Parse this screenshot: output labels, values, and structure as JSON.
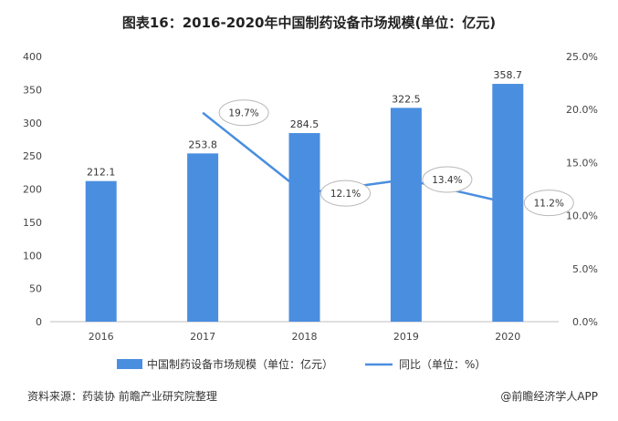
{
  "title": "图表16：2016-2020年中国制药设备市场规模(单位：亿元)",
  "chart_data": {
    "type": "bar",
    "categories": [
      "2016",
      "2017",
      "2018",
      "2019",
      "2020"
    ],
    "series": [
      {
        "name": "中国制药设备市场规模（单位：亿元）",
        "type": "bar",
        "axis": "left",
        "values": [
          212.1,
          253.8,
          284.5,
          322.5,
          358.7
        ],
        "labels": [
          "212.1",
          "253.8",
          "284.5",
          "322.5",
          "358.7"
        ],
        "color": "#4a8ee0"
      },
      {
        "name": "同比（单位：%）",
        "type": "line",
        "axis": "right",
        "values": [
          null,
          19.7,
          12.1,
          13.4,
          11.2
        ],
        "labels": [
          "",
          "19.7%",
          "12.1%",
          "13.4%",
          "11.2%"
        ],
        "color": "#4a8ee0"
      }
    ],
    "y_left": {
      "ylim": [
        0,
        400
      ],
      "ticks": [
        "0",
        "50",
        "100",
        "150",
        "200",
        "250",
        "300",
        "350",
        "400"
      ]
    },
    "y_right": {
      "ylim": [
        0,
        25
      ],
      "ticks": [
        "0.0%",
        "5.0%",
        "10.0%",
        "15.0%",
        "20.0%",
        "25.0%"
      ]
    },
    "legend_position": "bottom",
    "grid": false
  },
  "footer": {
    "source": "资料来源：药装协 前瞻产业研究院整理",
    "brand": "@前瞻经济学人APP"
  }
}
